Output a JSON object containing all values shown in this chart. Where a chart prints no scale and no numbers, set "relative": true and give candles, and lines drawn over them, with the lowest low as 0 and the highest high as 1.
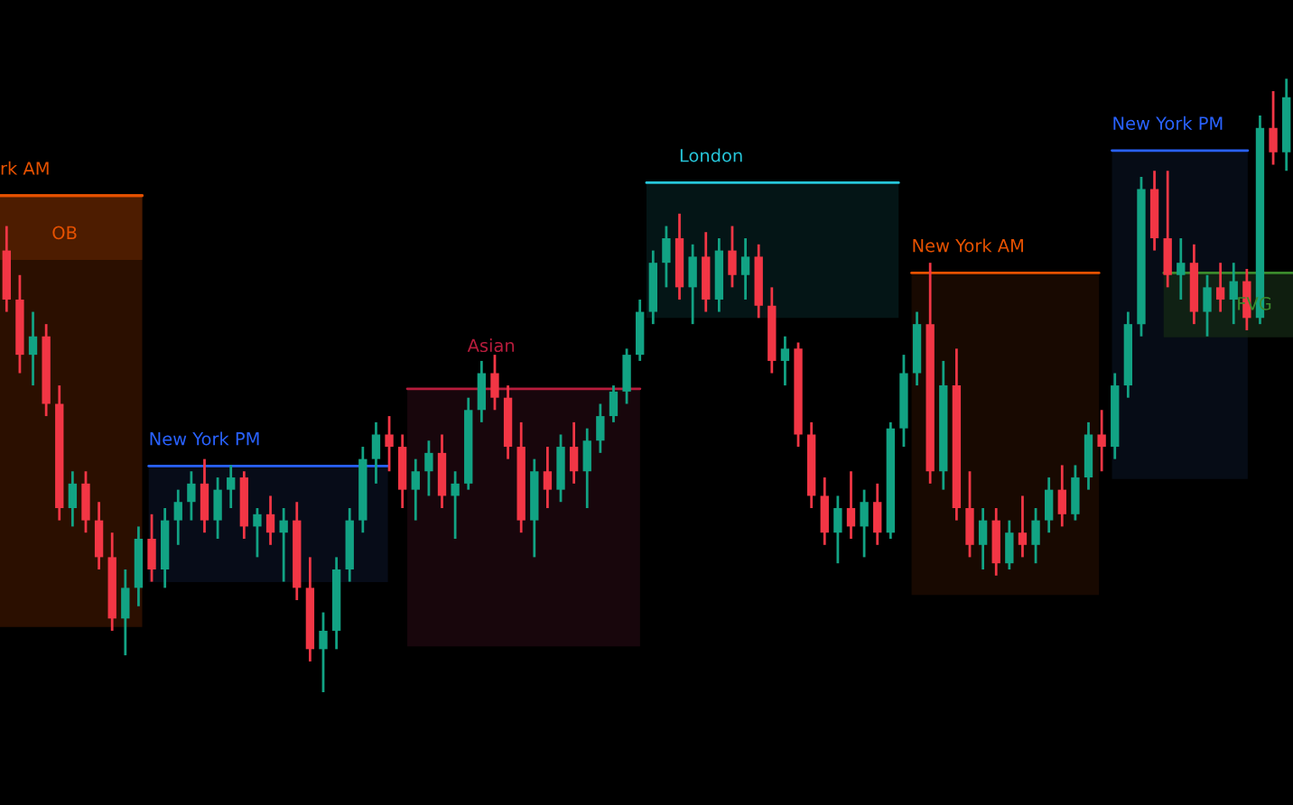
{
  "chart_data": {
    "type": "candlestick",
    "relative": true,
    "categories": [
      null,
      null,
      null,
      null,
      null,
      null,
      null,
      null,
      null,
      null,
      null,
      null,
      null,
      null,
      null,
      null,
      null,
      null,
      null,
      null,
      null,
      null,
      null,
      null,
      null,
      null,
      null,
      null,
      null,
      null,
      null,
      null,
      null,
      null,
      null,
      null,
      null,
      null,
      null,
      null,
      null,
      null,
      null,
      null,
      null,
      null,
      null,
      null,
      null,
      null,
      null,
      null,
      null,
      null,
      null,
      null,
      null,
      null,
      null,
      null,
      null,
      null,
      null,
      null,
      null,
      null,
      null,
      null,
      null,
      null,
      null,
      null,
      null,
      null,
      null,
      null,
      null,
      null,
      null,
      null,
      null,
      null,
      null,
      null,
      null,
      null,
      null,
      null,
      null,
      null,
      null,
      null,
      null,
      null,
      null,
      null,
      null,
      null
    ],
    "ohlc": [
      [
        0.72,
        0.76,
        0.62,
        0.64
      ],
      [
        0.64,
        0.68,
        0.52,
        0.55
      ],
      [
        0.55,
        0.62,
        0.5,
        0.58
      ],
      [
        0.58,
        0.6,
        0.45,
        0.47
      ],
      [
        0.47,
        0.5,
        0.28,
        0.3
      ],
      [
        0.3,
        0.36,
        0.27,
        0.34
      ],
      [
        0.34,
        0.36,
        0.26,
        0.28
      ],
      [
        0.28,
        0.31,
        0.2,
        0.22
      ],
      [
        0.22,
        0.26,
        0.1,
        0.12
      ],
      [
        0.12,
        0.2,
        0.06,
        0.17
      ],
      [
        0.17,
        0.27,
        0.14,
        0.25
      ],
      [
        0.25,
        0.29,
        0.18,
        0.2
      ],
      [
        0.2,
        0.3,
        0.17,
        0.28
      ],
      [
        0.28,
        0.33,
        0.24,
        0.31
      ],
      [
        0.31,
        0.36,
        0.28,
        0.34
      ],
      [
        0.34,
        0.38,
        0.26,
        0.28
      ],
      [
        0.28,
        0.35,
        0.25,
        0.33
      ],
      [
        0.33,
        0.37,
        0.3,
        0.35
      ],
      [
        0.35,
        0.36,
        0.25,
        0.27
      ],
      [
        0.27,
        0.3,
        0.22,
        0.29
      ],
      [
        0.29,
        0.32,
        0.24,
        0.26
      ],
      [
        0.26,
        0.3,
        0.18,
        0.28
      ],
      [
        0.28,
        0.31,
        0.15,
        0.17
      ],
      [
        0.17,
        0.22,
        0.05,
        0.07
      ],
      [
        0.07,
        0.13,
        0.0,
        0.1
      ],
      [
        0.1,
        0.22,
        0.07,
        0.2
      ],
      [
        0.2,
        0.3,
        0.18,
        0.28
      ],
      [
        0.28,
        0.4,
        0.26,
        0.38
      ],
      [
        0.38,
        0.44,
        0.34,
        0.42
      ],
      [
        0.42,
        0.45,
        0.36,
        0.4
      ],
      [
        0.4,
        0.42,
        0.3,
        0.33
      ],
      [
        0.33,
        0.38,
        0.28,
        0.36
      ],
      [
        0.36,
        0.41,
        0.32,
        0.39
      ],
      [
        0.39,
        0.42,
        0.3,
        0.32
      ],
      [
        0.32,
        0.36,
        0.25,
        0.34
      ],
      [
        0.34,
        0.48,
        0.33,
        0.46
      ],
      [
        0.46,
        0.54,
        0.44,
        0.52
      ],
      [
        0.52,
        0.55,
        0.46,
        0.48
      ],
      [
        0.48,
        0.5,
        0.38,
        0.4
      ],
      [
        0.4,
        0.44,
        0.26,
        0.28
      ],
      [
        0.28,
        0.38,
        0.22,
        0.36
      ],
      [
        0.36,
        0.4,
        0.3,
        0.33
      ],
      [
        0.33,
        0.42,
        0.31,
        0.4
      ],
      [
        0.4,
        0.44,
        0.34,
        0.36
      ],
      [
        0.36,
        0.43,
        0.3,
        0.41
      ],
      [
        0.41,
        0.47,
        0.39,
        0.45
      ],
      [
        0.45,
        0.5,
        0.44,
        0.49
      ],
      [
        0.49,
        0.56,
        0.47,
        0.55
      ],
      [
        0.55,
        0.64,
        0.54,
        0.62
      ],
      [
        0.62,
        0.72,
        0.6,
        0.7
      ],
      [
        0.7,
        0.76,
        0.66,
        0.74
      ],
      [
        0.74,
        0.78,
        0.64,
        0.66
      ],
      [
        0.66,
        0.73,
        0.6,
        0.71
      ],
      [
        0.71,
        0.75,
        0.62,
        0.64
      ],
      [
        0.64,
        0.74,
        0.62,
        0.72
      ],
      [
        0.72,
        0.76,
        0.66,
        0.68
      ],
      [
        0.68,
        0.74,
        0.64,
        0.71
      ],
      [
        0.71,
        0.73,
        0.61,
        0.63
      ],
      [
        0.63,
        0.66,
        0.52,
        0.54
      ],
      [
        0.54,
        0.58,
        0.5,
        0.56
      ],
      [
        0.56,
        0.57,
        0.4,
        0.42
      ],
      [
        0.42,
        0.44,
        0.3,
        0.32
      ],
      [
        0.32,
        0.35,
        0.24,
        0.26
      ],
      [
        0.26,
        0.32,
        0.21,
        0.3
      ],
      [
        0.3,
        0.36,
        0.25,
        0.27
      ],
      [
        0.27,
        0.33,
        0.22,
        0.31
      ],
      [
        0.31,
        0.34,
        0.24,
        0.26
      ],
      [
        0.26,
        0.44,
        0.25,
        0.43
      ],
      [
        0.43,
        0.55,
        0.4,
        0.52
      ],
      [
        0.52,
        0.62,
        0.5,
        0.6
      ],
      [
        0.6,
        0.7,
        0.34,
        0.36
      ],
      [
        0.36,
        0.54,
        0.33,
        0.5
      ],
      [
        0.5,
        0.56,
        0.28,
        0.3
      ],
      [
        0.3,
        0.36,
        0.22,
        0.24
      ],
      [
        0.24,
        0.3,
        0.2,
        0.28
      ],
      [
        0.28,
        0.3,
        0.19,
        0.21
      ],
      [
        0.21,
        0.28,
        0.2,
        0.26
      ],
      [
        0.26,
        0.32,
        0.22,
        0.24
      ],
      [
        0.24,
        0.3,
        0.21,
        0.28
      ],
      [
        0.28,
        0.35,
        0.26,
        0.33
      ],
      [
        0.33,
        0.37,
        0.27,
        0.29
      ],
      [
        0.29,
        0.37,
        0.28,
        0.35
      ],
      [
        0.35,
        0.44,
        0.33,
        0.42
      ],
      [
        0.42,
        0.46,
        0.36,
        0.4
      ],
      [
        0.4,
        0.52,
        0.38,
        0.5
      ],
      [
        0.5,
        0.62,
        0.48,
        0.6
      ],
      [
        0.6,
        0.84,
        0.58,
        0.82
      ],
      [
        0.82,
        0.85,
        0.72,
        0.74
      ],
      [
        0.74,
        0.85,
        0.66,
        0.68
      ],
      [
        0.68,
        0.74,
        0.64,
        0.7
      ],
      [
        0.7,
        0.73,
        0.6,
        0.62
      ],
      [
        0.62,
        0.68,
        0.58,
        0.66
      ],
      [
        0.66,
        0.7,
        0.62,
        0.64
      ],
      [
        0.64,
        0.7,
        0.6,
        0.67
      ],
      [
        0.67,
        0.69,
        0.59,
        0.61
      ],
      [
        0.61,
        0.94,
        0.6,
        0.92
      ],
      [
        0.92,
        0.98,
        0.86,
        0.88
      ],
      [
        0.88,
        1.0,
        0.85,
        0.97
      ]
    ],
    "annotations": [
      "rk AM",
      "OB",
      "New York PM",
      "Asian",
      "London",
      "New York AM",
      "New York PM",
      "FVG"
    ],
    "legend": false
  }
}
